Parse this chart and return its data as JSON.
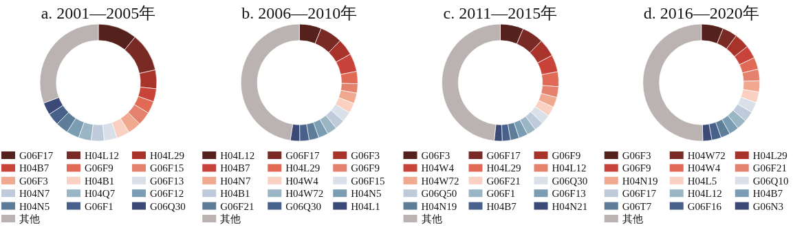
{
  "chart_data": [
    {
      "type": "donut",
      "title": "a. 2001—2005年",
      "legend": "bottom",
      "categories": [
        "G06F17",
        "H04L12",
        "H04L29",
        "H04B7",
        "G06F9",
        "G06F15",
        "G06F3",
        "H04B1",
        "G06F13",
        "H04N7",
        "H04Q7",
        "G06F12",
        "H04N5",
        "G06F1",
        "G06Q30",
        "其他"
      ],
      "values": [
        10.8,
        10.7,
        5.2,
        3.6,
        3.4,
        3.8,
        3.7,
        3.6,
        3.6,
        3.6,
        3.5,
        3.5,
        3.5,
        3.4,
        3.4,
        30.7
      ],
      "colors": [
        "#55211d",
        "#7a2a25",
        "#a8332b",
        "#c8443a",
        "#e06a55",
        "#e5826e",
        "#f0a88f",
        "#f9d0c2",
        "#d9e0ea",
        "#bfcbdb",
        "#9ab5c3",
        "#7a9db4",
        "#5e7d99",
        "#47618a",
        "#3c4a78",
        "#bbb3b1"
      ]
    },
    {
      "type": "donut",
      "title": "b. 2006—2010年",
      "legend": "bottom",
      "categories": [
        "H04L12",
        "G06F17",
        "G06F3",
        "H04B7",
        "H04L29",
        "G06F9",
        "H04N7",
        "H04W4",
        "G06F15",
        "H04B1",
        "H04W72",
        "H04N5",
        "G06F21",
        "G06Q30",
        "H04L1",
        "其他"
      ],
      "values": [
        6.1,
        6.2,
        4.6,
        5.0,
        3.4,
        2.6,
        2.9,
        2.8,
        2.8,
        2.8,
        2.7,
        2.7,
        2.7,
        2.6,
        2.6,
        47.5
      ],
      "colors": [
        "#55211d",
        "#7a2a25",
        "#a8332b",
        "#c8443a",
        "#e06a55",
        "#e5826e",
        "#f0a88f",
        "#f9d0c2",
        "#d9e0ea",
        "#bfcbdb",
        "#9ab5c3",
        "#7a9db4",
        "#5e7d99",
        "#47618a",
        "#3c4a78",
        "#bbb3b1"
      ]
    },
    {
      "type": "donut",
      "title": "c. 2011—2015年",
      "legend": "bottom",
      "categories": [
        "G06F3",
        "G06F17",
        "G06F9",
        "H04W4",
        "H04L29",
        "H04L12",
        "H04W72",
        "G06F21",
        "G06Q30",
        "G06Q50",
        "G06F1",
        "G06F13",
        "H04N19",
        "H04B7",
        "H04N21",
        "其他"
      ],
      "values": [
        6.4,
        6.0,
        4.9,
        4.7,
        4.1,
        3.0,
        2.8,
        2.7,
        2.6,
        2.6,
        2.5,
        2.5,
        2.4,
        2.3,
        2.2,
        48.3
      ],
      "colors": [
        "#55211d",
        "#7a2a25",
        "#a8332b",
        "#c8443a",
        "#e06a55",
        "#e5826e",
        "#f0a88f",
        "#f9d0c2",
        "#d9e0ea",
        "#bfcbdb",
        "#9ab5c3",
        "#7a9db4",
        "#5e7d99",
        "#47618a",
        "#3c4a78",
        "#bbb3b1"
      ]
    },
    {
      "type": "donut",
      "title": "d. 2016—2020年",
      "legend": "bottom",
      "categories": [
        "G06F3",
        "H04W72",
        "H04L29",
        "G06F9",
        "H04W4",
        "G06F21",
        "H04N19",
        "H04L5",
        "G06Q10",
        "G06F17",
        "H04L12",
        "H04B7",
        "G06T7",
        "G06F16",
        "G06N3",
        "其他"
      ],
      "values": [
        6.1,
        4.1,
        4.2,
        3.6,
        3.3,
        3.2,
        3.1,
        3.0,
        2.9,
        2.9,
        2.8,
        2.7,
        2.6,
        2.6,
        2.5,
        50.4
      ],
      "colors": [
        "#55211d",
        "#7a2a25",
        "#a8332b",
        "#c8443a",
        "#e06a55",
        "#e5826e",
        "#f0a88f",
        "#f9d0c2",
        "#d9e0ea",
        "#bfcbdb",
        "#9ab5c3",
        "#7a9db4",
        "#5e7d99",
        "#47618a",
        "#3c4a78",
        "#bbb3b1"
      ]
    }
  ]
}
